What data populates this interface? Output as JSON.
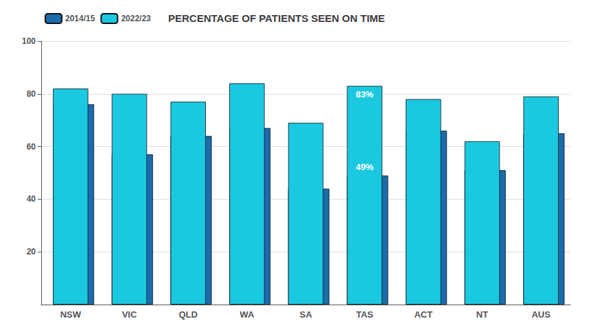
{
  "chart_data": {
    "type": "bar",
    "title": "PERCENTAGE OF PATIENTS SEEN ON TIME",
    "categories": [
      "NSW",
      "VIC",
      "QLD",
      "WA",
      "SA",
      "TAS",
      "ACT",
      "NT",
      "AUS"
    ],
    "series": [
      {
        "name": "2014/15",
        "color": "#1b6cad",
        "values": [
          76,
          57,
          64,
          67,
          44,
          49,
          66,
          51,
          65
        ]
      },
      {
        "name": "2022/23",
        "color": "#1ac8e0",
        "values": [
          82,
          80,
          77,
          84,
          69,
          83,
          78,
          62,
          79
        ]
      }
    ],
    "ylim": [
      0,
      100
    ],
    "yticks": [
      20,
      40,
      60,
      80,
      100
    ],
    "grid": true,
    "annotations": [
      {
        "text": "49%",
        "category": "TAS",
        "series": "2014/15",
        "value": 49
      },
      {
        "text": "83%",
        "category": "TAS",
        "series": "2022/23",
        "value": 83
      }
    ]
  }
}
